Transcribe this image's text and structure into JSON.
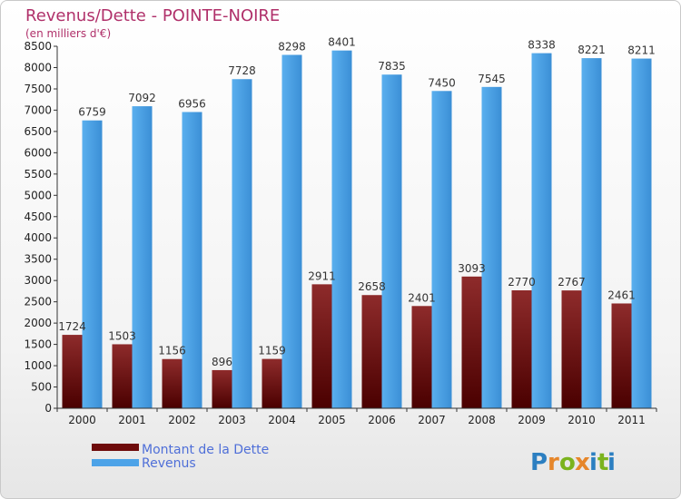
{
  "chart_data": {
    "type": "bar",
    "title": "Revenus/Dette - POINTE-NOIRE",
    "subtitle": "(en milliers d'€)",
    "categories": [
      "2000",
      "2001",
      "2002",
      "2003",
      "2004",
      "2005",
      "2006",
      "2007",
      "2008",
      "2009",
      "2010",
      "2011"
    ],
    "series": [
      {
        "name": "Montant de la Dette",
        "color": "#6e0b0b",
        "values": [
          1724,
          1503,
          1156,
          896,
          1159,
          2911,
          2658,
          2401,
          3093,
          2770,
          2767,
          2461
        ],
        "labels": [
          "1724",
          "1503",
          "1156",
          "896",
          "1159",
          "2911",
          "2658",
          "2401",
          "3093",
          "2770",
          "2767",
          "2461"
        ]
      },
      {
        "name": "Revenus",
        "color": "#4da3e8",
        "values": [
          6759,
          7092,
          6956,
          7728,
          8298,
          8401,
          7835,
          7450,
          7545,
          8338,
          8221,
          8211
        ],
        "labels": [
          "6759",
          "7092",
          "6956",
          "7728",
          "8298",
          "8401",
          "7835",
          "7450",
          "7545",
          "8338",
          "8221",
          "8211"
        ]
      }
    ],
    "ylim": [
      0,
      8500
    ],
    "yticks": [
      0,
      500,
      1000,
      1500,
      2000,
      2500,
      3000,
      3500,
      4000,
      4500,
      5000,
      5500,
      6000,
      6500,
      7000,
      7500,
      8000,
      8500
    ],
    "grid": false,
    "legend_position": "bottom-left"
  },
  "logo": {
    "text": "Proxiti",
    "letters": [
      "P",
      "r",
      "o",
      "x",
      "i",
      "t",
      "i"
    ],
    "colors": [
      "#2c7fc1",
      "#e6862a",
      "#7bb31e",
      "#e6862a",
      "#2c7fc1",
      "#7bb31e",
      "#2c7fc1"
    ]
  }
}
